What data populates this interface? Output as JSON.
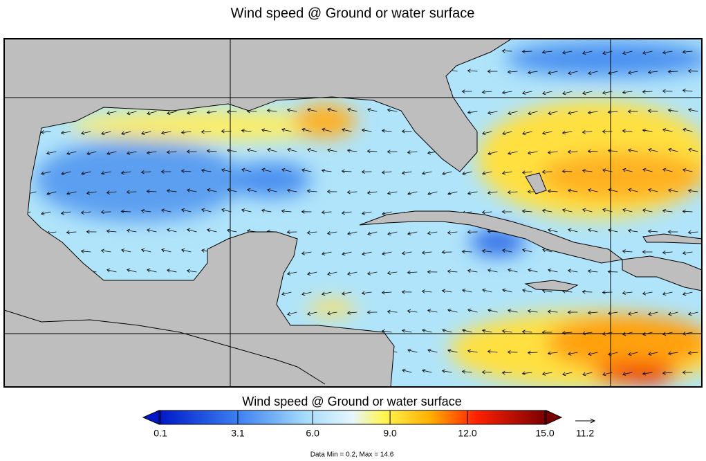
{
  "title": "Wind speed @ Ground or water surface",
  "colorbar": {
    "title": "Wind speed @ Ground or water surface",
    "ticks": [
      {
        "value": 0.1,
        "label": "0.1"
      },
      {
        "value": 3.1,
        "label": "3.1"
      },
      {
        "value": 6.0,
        "label": "6.0"
      },
      {
        "value": 9.0,
        "label": "9.0"
      },
      {
        "value": 12.0,
        "label": "12.0"
      },
      {
        "value": 15.0,
        "label": "15.0"
      }
    ]
  },
  "reference_vector": {
    "label": "11.2"
  },
  "footer": "Data Min = 0.2, Max = 14.6"
}
